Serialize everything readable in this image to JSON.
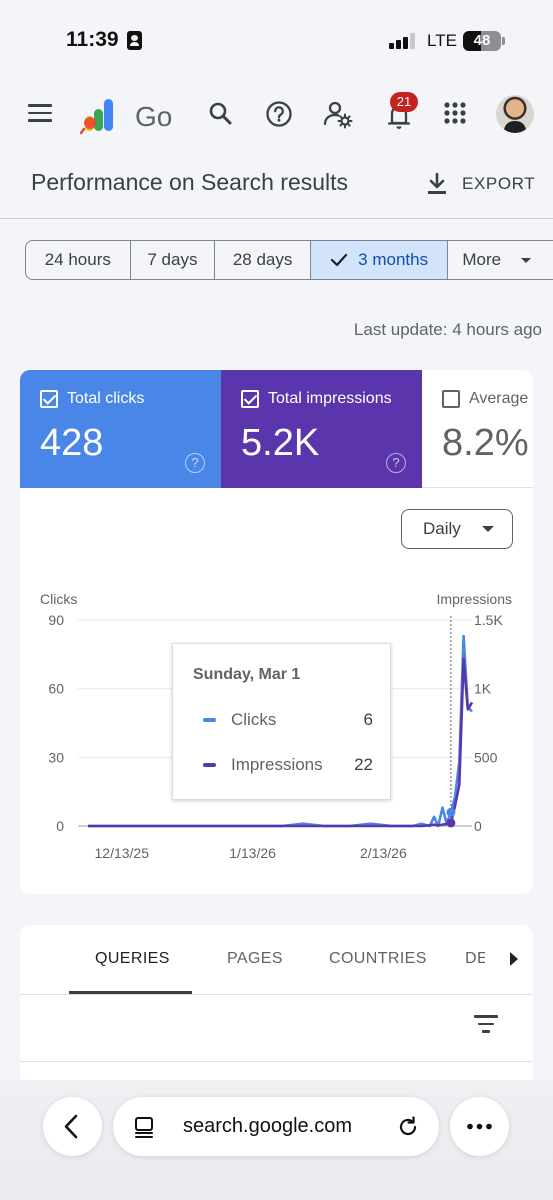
{
  "status_bar": {
    "time": "11:39",
    "network": "LTE",
    "battery": "48",
    "battery_level_percent": 48
  },
  "app_bar": {
    "logo_text": "Go",
    "notification_count": "21",
    "icons": [
      "menu-icon",
      "search-icon",
      "help-icon",
      "admin-settings-icon",
      "notification-bell-icon",
      "apps-grid-icon",
      "avatar"
    ]
  },
  "header": {
    "title": "Performance on Search results",
    "export_label": "EXPORT"
  },
  "date_range": {
    "options": [
      {
        "label": "24 hours",
        "selected": false
      },
      {
        "label": "7 days",
        "selected": false
      },
      {
        "label": "28 days",
        "selected": false
      },
      {
        "label": "3 months",
        "selected": true
      },
      {
        "label": "More",
        "selected": false
      }
    ]
  },
  "last_update": "Last update: 4 hours ago",
  "metrics": [
    {
      "label": "Total clicks",
      "value": "428",
      "checked": true,
      "color": "#4a86e8"
    },
    {
      "label": "Total impressions",
      "value": "5.2K",
      "checked": true,
      "color": "#5a35ac"
    },
    {
      "label": "Average CTR",
      "value": "8.2%",
      "checked": false,
      "color": "#ffffff"
    }
  ],
  "granularity": "Daily",
  "tooltip": {
    "title": "Sunday, Mar 1",
    "rows": [
      {
        "name": "Clicks",
        "value": "6",
        "color": "#4a86e8"
      },
      {
        "name": "Impressions",
        "value": "22",
        "color": "#5a35ac"
      }
    ]
  },
  "chart_data": {
    "type": "line",
    "left_axis_label": "Clicks",
    "right_axis_label": "Impressions",
    "left_ticks": [
      "0",
      "30",
      "60",
      "90"
    ],
    "right_ticks": [
      "0",
      "500",
      "1K",
      "1.5K"
    ],
    "ylim_left": [
      0,
      90
    ],
    "ylim_right": [
      0,
      1500
    ],
    "x_ticks": [
      "12/13/25",
      "1/13/26",
      "2/13/26"
    ],
    "x_range": [
      "2025-12-05",
      "2026-03-06"
    ],
    "grid": true,
    "hover_date": "2026-03-01",
    "series": [
      {
        "name": "Clicks",
        "color": "#4a86e8",
        "axis": "left",
        "points": [
          [
            "2025-12-05",
            0
          ],
          [
            "2025-12-10",
            0
          ],
          [
            "2025-12-15",
            0
          ],
          [
            "2025-12-20",
            0
          ],
          [
            "2025-12-25",
            0
          ],
          [
            "2025-12-30",
            0
          ],
          [
            "2026-01-05",
            0
          ],
          [
            "2026-01-10",
            0
          ],
          [
            "2026-01-15",
            0
          ],
          [
            "2026-01-20",
            0
          ],
          [
            "2026-01-25",
            1
          ],
          [
            "2026-01-30",
            0
          ],
          [
            "2026-02-05",
            0
          ],
          [
            "2026-02-10",
            1
          ],
          [
            "2026-02-15",
            0
          ],
          [
            "2026-02-20",
            0
          ],
          [
            "2026-02-22",
            1
          ],
          [
            "2026-02-24",
            0
          ],
          [
            "2026-02-25",
            4
          ],
          [
            "2026-02-26",
            0
          ],
          [
            "2026-02-27",
            8
          ],
          [
            "2026-02-28",
            1
          ],
          [
            "2026-03-01",
            6
          ],
          [
            "2026-03-02",
            13
          ],
          [
            "2026-03-03",
            28
          ],
          [
            "2026-03-04",
            83
          ],
          [
            "2026-03-05",
            52
          ],
          [
            "2026-03-06",
            50
          ]
        ]
      },
      {
        "name": "Impressions",
        "color": "#5a35ac",
        "axis": "right",
        "points": [
          [
            "2025-12-05",
            0
          ],
          [
            "2025-12-10",
            0
          ],
          [
            "2025-12-15",
            0
          ],
          [
            "2025-12-20",
            0
          ],
          [
            "2025-12-25",
            0
          ],
          [
            "2025-12-30",
            0
          ],
          [
            "2026-01-05",
            0
          ],
          [
            "2026-01-10",
            0
          ],
          [
            "2026-01-15",
            0
          ],
          [
            "2026-01-20",
            0
          ],
          [
            "2026-01-25",
            0
          ],
          [
            "2026-01-30",
            0
          ],
          [
            "2026-02-05",
            0
          ],
          [
            "2026-02-10",
            0
          ],
          [
            "2026-02-15",
            0
          ],
          [
            "2026-02-20",
            0
          ],
          [
            "2026-02-22",
            0
          ],
          [
            "2026-02-24",
            5
          ],
          [
            "2026-02-25",
            10
          ],
          [
            "2026-02-26",
            5
          ],
          [
            "2026-02-27",
            10
          ],
          [
            "2026-02-28",
            15
          ],
          [
            "2026-03-01",
            22
          ],
          [
            "2026-03-02",
            150
          ],
          [
            "2026-03-03",
            300
          ],
          [
            "2026-03-04",
            1220
          ],
          [
            "2026-03-05",
            850
          ],
          [
            "2026-03-06",
            900
          ]
        ]
      }
    ]
  },
  "tabs": {
    "items": [
      {
        "label": "QUERIES",
        "active": true
      },
      {
        "label": "PAGES",
        "active": false
      },
      {
        "label": "COUNTRIES",
        "active": false
      },
      {
        "label": "DEVICES",
        "active": false
      }
    ]
  },
  "browser": {
    "url": "search.google.com"
  }
}
